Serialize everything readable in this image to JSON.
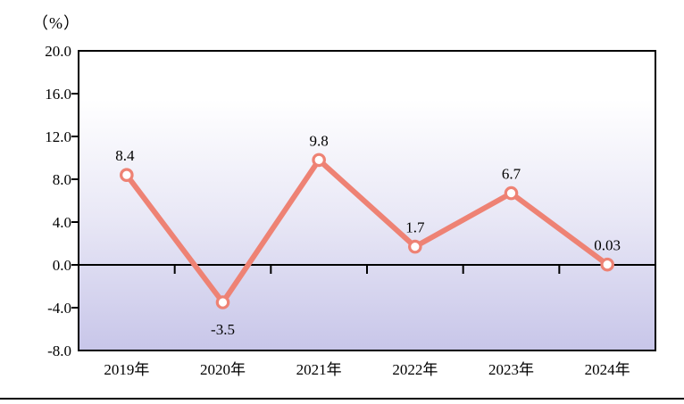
{
  "chart_data": {
    "type": "line",
    "title": "",
    "xlabel": "",
    "ylabel": "（%）",
    "categories": [
      "2019年",
      "2020年",
      "2021年",
      "2022年",
      "2023年",
      "2024年"
    ],
    "values": [
      8.4,
      -3.5,
      9.8,
      1.7,
      6.7,
      0.03
    ],
    "data_labels": [
      "8.4",
      "-3.5",
      "9.8",
      "1.7",
      "6.7",
      "0.03"
    ],
    "y_tick_labels": [
      "20.0",
      "16.0",
      "12.0",
      "8.0",
      "4.0",
      "0.0",
      "-4.0",
      "-8.0"
    ],
    "y_tick_values": [
      20.0,
      16.0,
      12.0,
      8.0,
      4.0,
      0.0,
      -4.0,
      -8.0
    ],
    "ylim": [
      -8.0,
      20.0
    ],
    "grid": false,
    "legend": "none",
    "line_color": "#ee8274",
    "marker_fill": "#ffffff",
    "marker_stroke": "#ee8274",
    "axis_color": "#000000",
    "label_color": "#000000",
    "plot_gradient_top": "#ffffff",
    "plot_gradient_bottom": "#c8c6e9"
  }
}
